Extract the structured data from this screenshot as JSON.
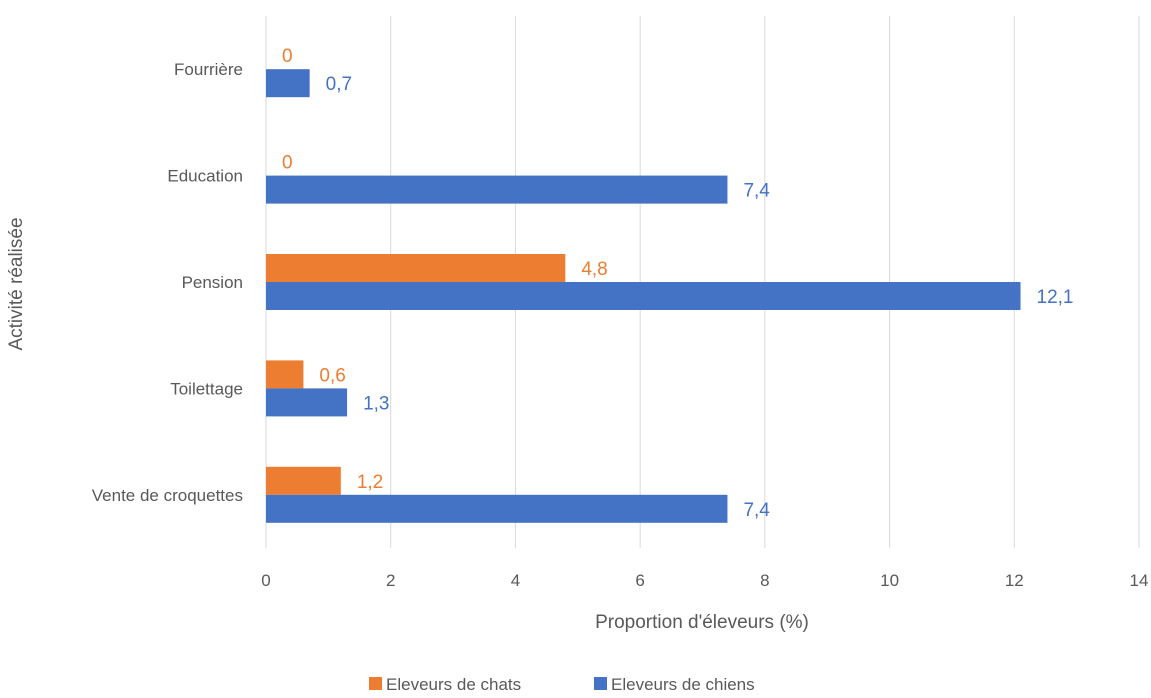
{
  "chart_data": {
    "type": "bar",
    "orientation": "horizontal",
    "categories": [
      "Fourrière",
      "Education",
      "Pension",
      "Toilettage",
      "Vente de croquettes"
    ],
    "series": [
      {
        "name": "Eleveurs de chats",
        "color": "#ED7D31",
        "values": [
          0,
          0,
          4.8,
          0.6,
          1.2
        ],
        "labels": [
          "0",
          "0",
          "4,8",
          "0,6",
          "1,2"
        ]
      },
      {
        "name": "Eleveurs de chiens",
        "color": "#4472C4",
        "values": [
          0.7,
          7.4,
          12.1,
          1.3,
          7.4
        ],
        "labels": [
          "0,7",
          "7,4",
          "12,1",
          "1,3",
          "7,4"
        ]
      }
    ],
    "xlabel": "Proportion d'éleveurs (%)",
    "ylabel": "Activité réalisée",
    "xlim": [
      0,
      14
    ],
    "xticks": [
      "0",
      "2",
      "4",
      "6",
      "8",
      "10",
      "12",
      "14"
    ],
    "grid": "vertical",
    "legend_position": "bottom"
  }
}
